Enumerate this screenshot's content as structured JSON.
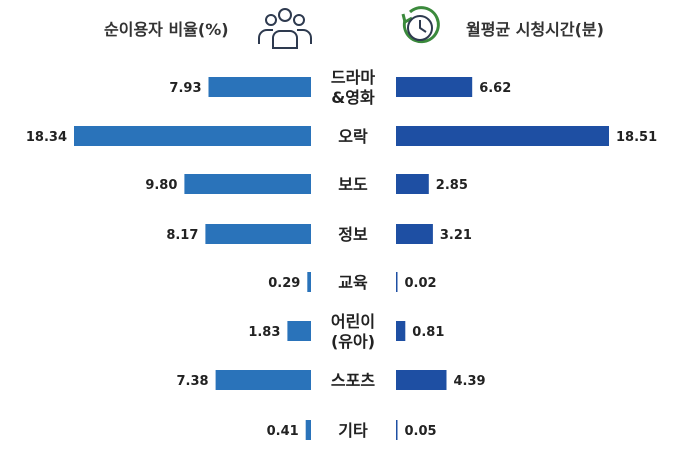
{
  "chart_data": {
    "type": "bar",
    "left_title": "순이용자 비율(%)",
    "right_title": "월평균 시청시간(분)",
    "categories": [
      [
        "드라마",
        "&영화"
      ],
      [
        "오락"
      ],
      [
        "보도"
      ],
      [
        "정보"
      ],
      [
        "교육"
      ],
      [
        "어린이",
        "(유아)"
      ],
      [
        "스포츠"
      ],
      [
        "기타"
      ]
    ],
    "series": [
      {
        "values": [
          7.93,
          18.34,
          9.8,
          8.17,
          0.29,
          1.83,
          7.38,
          0.41
        ],
        "labels": [
          "7.93",
          "18.34",
          "9.80",
          "8.17",
          "0.29",
          "1.83",
          "7.38",
          "0.41"
        ]
      },
      {
        "values": [
          6.62,
          18.51,
          2.85,
          3.21,
          0.02,
          0.81,
          4.39,
          0.05
        ],
        "labels": [
          "6.62",
          "18.51",
          "2.85",
          "3.21",
          "0.02",
          "0.81",
          "4.39",
          "0.05"
        ]
      }
    ],
    "left_color": "#2a73ba",
    "right_color": "#1e4fa3",
    "icons": {
      "left": "users-icon",
      "right": "clock-history-icon"
    },
    "grid": false
  }
}
